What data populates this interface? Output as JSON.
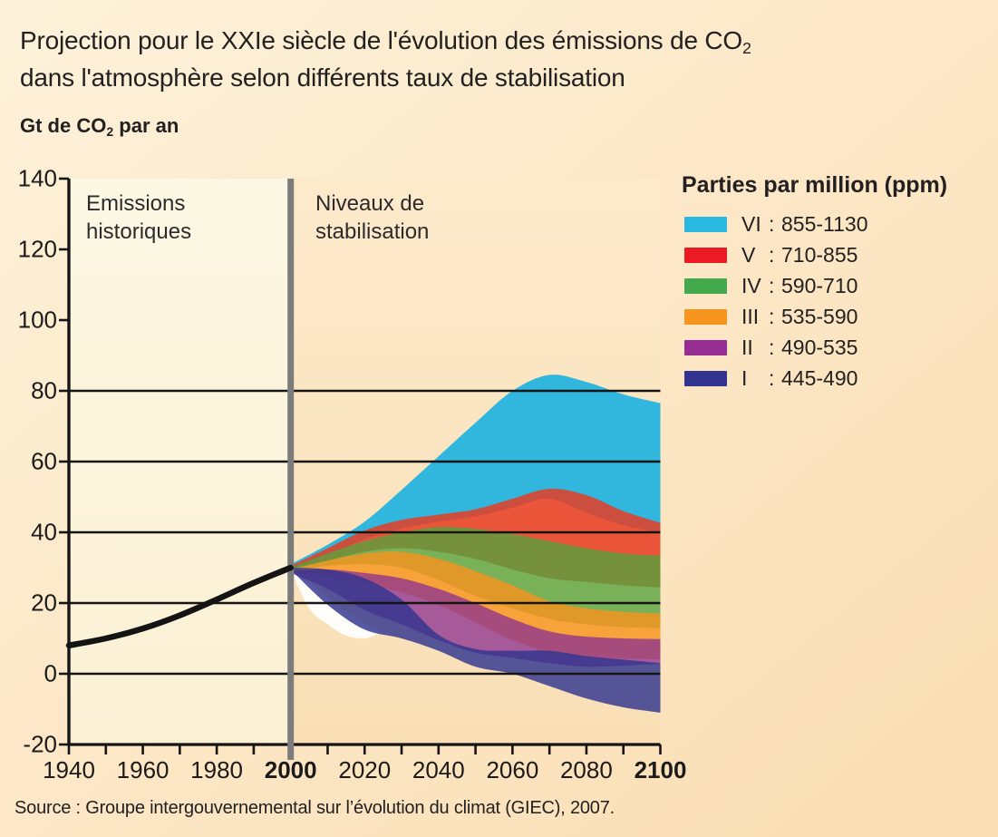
{
  "page": {
    "title": {
      "line1_pre": "Projection pour le XXIe siècle de l'évolution des émissions de CO",
      "line1_sub": "2",
      "line2": "dans l'atmosphère selon différents taux de stabilisation"
    },
    "unit_label": {
      "pre": "Gt de CO",
      "sub": "2",
      "post": " par an"
    },
    "source": "Source : Groupe intergouvernemental sur l’évolution du climat (GIEC), 2007."
  },
  "plot_annotations": {
    "historical_line1": "Emissions",
    "historical_line2": "historiques",
    "stabilization_line1": "Niveaux de",
    "stabilization_line2": "stabilisation"
  },
  "legend": {
    "title": "Parties par million (ppm)",
    "items": [
      {
        "numeral": "VI",
        "colon": ":",
        "range": "855-1130",
        "color": "#29B8DF"
      },
      {
        "numeral": "V",
        "colon": ":",
        "range": "710-855",
        "color": "#EC1B23"
      },
      {
        "numeral": "IV",
        "colon": ":",
        "range": "590-710",
        "color": "#44A94C"
      },
      {
        "numeral": "III",
        "colon": ":",
        "range": "535-590",
        "color": "#F7941D"
      },
      {
        "numeral": "II",
        "colon": ":",
        "range": "490-535",
        "color": "#952D92"
      },
      {
        "numeral": "I",
        "colon": ":",
        "range": "445-490",
        "color": "#32348F"
      }
    ]
  },
  "chart_data": {
    "type": "area",
    "title": "Projection pour le XXIe siècle de l'évolution des émissions de CO2 dans l'atmosphère selon différents taux de stabilisation",
    "ylabel": "Gt de CO2 par an",
    "xlim": [
      1940,
      2100
    ],
    "ylim": [
      -20,
      140
    ],
    "x_ticks": [
      1940,
      1960,
      1980,
      2000,
      2020,
      2040,
      2060,
      2080,
      2100
    ],
    "x_ticks_bold": [
      2000,
      2100
    ],
    "x_minor_tick_step": 10,
    "y_ticks": [
      140,
      120,
      100,
      80,
      60,
      40,
      20,
      0,
      -20
    ],
    "gridline_values": [
      80,
      60,
      40,
      20,
      0
    ],
    "divider_year": 2000,
    "panels": {
      "left_label": "Emissions historiques",
      "right_label": "Niveaux de stabilisation",
      "left_color_top": "#FCF8E4",
      "left_color_bottom": "#FBF0D4",
      "right_color_top": "#FCEACB",
      "right_color_bottom": "#FADFB6"
    },
    "historical_line": {
      "name": "Emissions historiques",
      "color": "#141414",
      "x": [
        1940,
        1950,
        1960,
        1970,
        1980,
        1990,
        2000
      ],
      "y": [
        8,
        10,
        12.8,
        16.5,
        21,
        25.7,
        30
      ]
    },
    "white_wedge": {
      "x": [
        2000,
        2005,
        2010,
        2015,
        2020,
        2024
      ],
      "top": [
        30,
        26,
        21.5,
        17.5,
        14.3,
        12.3
      ],
      "bottom": [
        29.5,
        18.5,
        14,
        10.8,
        10,
        11.4
      ]
    },
    "series_x": [
      2000,
      2010,
      2020,
      2030,
      2040,
      2050,
      2060,
      2070,
      2080,
      2090,
      2100
    ],
    "series": [
      {
        "name": "VI : 855-1130 ppm",
        "color": "#29B5DE",
        "opacity": 0.96,
        "top": [
          31,
          36.5,
          43,
          52,
          61.5,
          71,
          80,
          84.5,
          82.5,
          79,
          76.5
        ],
        "bottom": [
          29.5,
          33.5,
          38,
          41,
          43,
          44.5,
          47,
          49.5,
          45.5,
          42,
          40
        ]
      },
      {
        "name": "V : 710-855 ppm",
        "color": "#E63C23",
        "opacity": 0.85,
        "top": [
          30.5,
          35.5,
          40.5,
          43.5,
          45,
          46.5,
          49.5,
          52.3,
          50.5,
          46,
          42.7
        ],
        "bottom": [
          29.5,
          32,
          34.5,
          35.5,
          34.5,
          32.5,
          29.5,
          27,
          26,
          25,
          24.4
        ]
      },
      {
        "name": "IV : 590-710 ppm",
        "color": "#55A33C",
        "opacity": 0.78,
        "top": [
          30,
          34,
          37.5,
          40,
          41.5,
          41,
          39.5,
          37.5,
          35.5,
          34,
          33.4
        ],
        "bottom": [
          29,
          30.5,
          31,
          30,
          26.5,
          22,
          18.5,
          15.5,
          14,
          13.2,
          12.9
        ]
      },
      {
        "name": "III : 535-590 ppm",
        "color": "#F7941D",
        "opacity": 0.82,
        "top": [
          29.5,
          32,
          34,
          34.5,
          32.5,
          29,
          25,
          20.5,
          18.5,
          17.5,
          17
        ],
        "bottom": [
          28.5,
          27.5,
          25.5,
          23,
          19.5,
          14.5,
          9.5,
          6,
          4.8,
          4.3,
          4.1
        ]
      },
      {
        "name": "II : 490-535 ppm",
        "color": "#8F3390",
        "opacity": 0.78,
        "top": [
          29,
          29.5,
          28.5,
          27,
          24,
          20,
          15.5,
          12,
          10.5,
          10,
          9.8
        ],
        "bottom": [
          28.5,
          24,
          18,
          14,
          9.5,
          6,
          4.5,
          3,
          2,
          2.3,
          2.8
        ]
      },
      {
        "name": "I : 445-490 ppm",
        "color": "#31348F",
        "opacity": 0.82,
        "top": [
          30,
          29.5,
          27,
          21,
          11,
          7,
          6.5,
          6.5,
          5,
          4,
          3
        ],
        "bottom": [
          29.5,
          19.5,
          12.5,
          10,
          6.5,
          2,
          0,
          -3.5,
          -7,
          -9.5,
          -11
        ]
      }
    ],
    "styles": {
      "gridline_color": "#151515",
      "axis_color": "#151515",
      "divider_color": "#7C7C7C",
      "white_wedge_color": "#FFFFFF"
    }
  }
}
